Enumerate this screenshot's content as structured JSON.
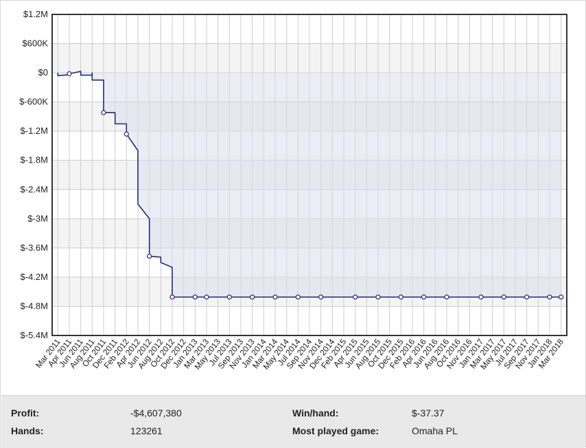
{
  "chart_data": {
    "type": "line",
    "y_ticks": [
      "$1.2M",
      "$600K",
      "$0",
      "$-600K",
      "$-1.2M",
      "$-1.8M",
      "$-2.4M",
      "$-3M",
      "$-3.6M",
      "$-4.2M",
      "$-4.8M",
      "$-5.4M"
    ],
    "y_tick_values": [
      1200000,
      600000,
      0,
      -600000,
      -1200000,
      -1800000,
      -2400000,
      -3000000,
      -3600000,
      -4200000,
      -4800000,
      -5400000
    ],
    "ylim": [
      -5400000,
      1200000
    ],
    "x_ticks": [
      "Mar 2011",
      "Apr 2011",
      "Jun 2011",
      "Aug 2011",
      "Oct 2011",
      "Dec 2011",
      "Feb 2012",
      "Apr 2012",
      "Jun 2012",
      "Aug 2012",
      "Oct 2012",
      "Dec 2012",
      "Jan 2013",
      "Mar 2013",
      "May 2013",
      "Jul 2013",
      "Sep 2013",
      "Nov 2013",
      "Jan 2014",
      "Mar 2014",
      "May 2014",
      "Jul 2014",
      "Sep 2014",
      "Nov 2014",
      "Dec 2014",
      "Feb 2015",
      "Apr 2015",
      "Jun 2015",
      "Aug 2015",
      "Oct 2015",
      "Dec 2015",
      "Feb 2016",
      "Apr 2016",
      "Jun 2016",
      "Aug 2016",
      "Oct 2016",
      "Nov 2016",
      "Jan 2017",
      "Mar 2017",
      "May 2017",
      "Jul 2017",
      "Sep 2017",
      "Nov 2017",
      "Jan 2018",
      "Mar 2018"
    ],
    "series": [
      {
        "points": [
          [
            "Mar 2011",
            0
          ],
          [
            "Mar 2011",
            -60000
          ],
          [
            "Apr 2011",
            -40000
          ],
          [
            "Apr 2011",
            20000
          ],
          [
            "Apr 2011",
            -20000
          ],
          [
            "Jun 2011",
            30000
          ],
          [
            "Jun 2011",
            -20000
          ],
          [
            "Jun 2011",
            -50000
          ],
          [
            "Aug 2011",
            -50000
          ],
          [
            "Aug 2011",
            0
          ],
          [
            "Aug 2011",
            -150000
          ],
          [
            "Oct 2011",
            -150000
          ],
          [
            "Oct 2011",
            -500000
          ],
          [
            "Oct 2011",
            -660000
          ],
          [
            "Oct 2011",
            -820000
          ],
          [
            "Dec 2011",
            -820000
          ],
          [
            "Dec 2011",
            -1050000
          ],
          [
            "Feb 2012",
            -1050000
          ],
          [
            "Feb 2012",
            -1260000
          ],
          [
            "Apr 2012",
            -1600000
          ],
          [
            "Apr 2012",
            -1750000
          ],
          [
            "Apr 2012",
            -1700000
          ],
          [
            "Apr 2012",
            -2700000
          ],
          [
            "Jun 2012",
            -3000000
          ],
          [
            "Jun 2012",
            -3550000
          ],
          [
            "Jun 2012",
            -3770000
          ],
          [
            "Aug 2012",
            -3790000
          ],
          [
            "Aug 2012",
            -3900000
          ],
          [
            "Oct 2012",
            -4000000
          ],
          [
            "Oct 2012",
            -4610000
          ],
          [
            "Mar 2018",
            -4610000
          ]
        ]
      }
    ],
    "markers": [
      "Apr 2011",
      "Oct 2011",
      "Feb 2012",
      "Jun 2012",
      "Oct 2012",
      "Jan 2013",
      "Mar 2013",
      "Jul 2013",
      "Nov 2013",
      "Mar 2014",
      "Jul 2014",
      "Nov 2014",
      "Apr 2015",
      "Aug 2015",
      "Dec 2015",
      "Apr 2016",
      "Aug 2016",
      "Jan 2017",
      "May 2017",
      "Sep 2017",
      "Jan 2018",
      "Mar 2018"
    ],
    "grid": true,
    "colors": {
      "line": "#1f2a7a",
      "fill": "#dcdcec",
      "band": "#f4f4f4",
      "grid": "#cccccc",
      "axis": "#333333"
    }
  },
  "stats": {
    "profit_label": "Profit:",
    "profit_value": "-$4,607,380",
    "hands_label": "Hands:",
    "hands_value": "123261",
    "winhand_label": "Win/hand:",
    "winhand_value": "$-37.37",
    "game_label": "Most played game:",
    "game_value": "Omaha PL"
  }
}
